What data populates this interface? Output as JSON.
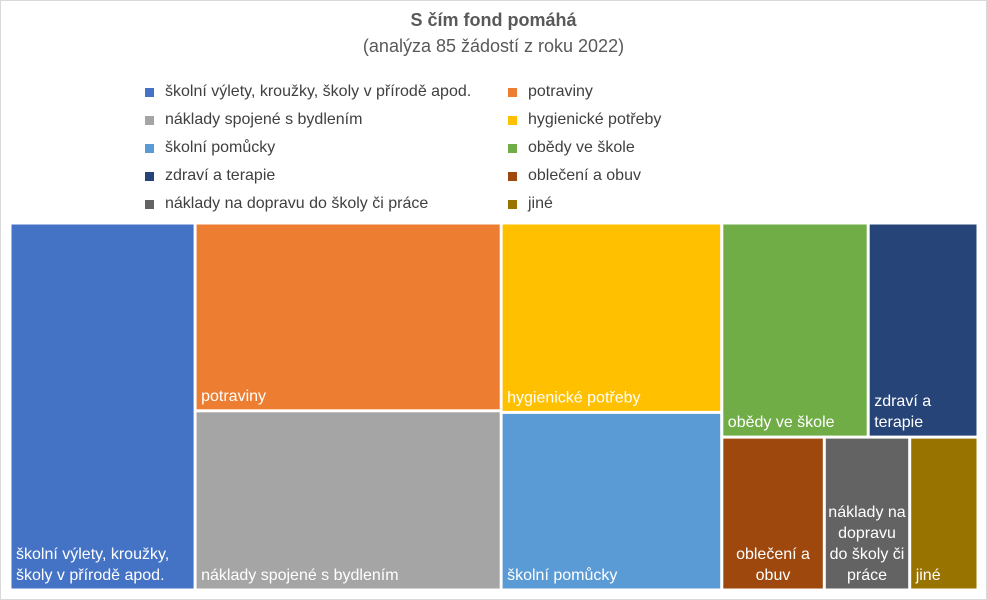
{
  "chart_data": {
    "type": "treemap",
    "title": "S čím fond pomáhá",
    "subtitle": "(analýza 85 žádostí z roku 2022)",
    "legend_position": "top",
    "categories": [
      "školní výlety, kroužky, školy v přírodě apod.",
      "potraviny",
      "náklady spojené s bydlením",
      "hygienické potřeby",
      "školní pomůcky",
      "obědy ve škole",
      "zdraví a terapie",
      "oblečení a obuv",
      "náklady na dopravu do školy či práce",
      "jiné"
    ],
    "values": [
      26,
      22,
      21,
      16,
      15,
      12,
      9,
      6,
      5,
      4
    ],
    "colors": [
      "#4472C4",
      "#ED7D31",
      "#A5A5A5",
      "#FFC000",
      "#5B9BD5",
      "#70AD47",
      "#264478",
      "#9E480E",
      "#636363",
      "#997300"
    ],
    "tile_labels": [
      [
        "školní výlety, kroužky,",
        "školy v přírodě apod."
      ],
      [
        "potraviny"
      ],
      [
        "náklady spojené s bydlením"
      ],
      [
        "hygienické potřeby"
      ],
      [
        "školní pomůcky"
      ],
      [
        "obědy ve škole"
      ],
      [
        "zdraví a",
        "terapie"
      ],
      [
        "oblečení a",
        "obuv"
      ],
      [
        "náklady na",
        "dopravu",
        "do školy či",
        "práce"
      ],
      [
        "jiné"
      ]
    ]
  }
}
